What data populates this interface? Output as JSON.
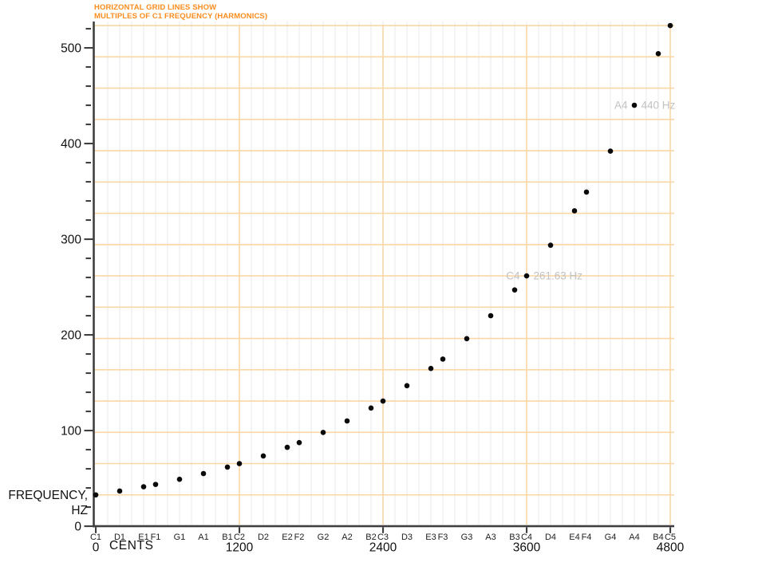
{
  "title": {
    "line1": "HORIZONTAL GRID LINES SHOW",
    "line2": "MULTIPLES OF C1 FREQUENCY (HARMONICS)"
  },
  "y_axis": {
    "label_line1": "FREQUENCY,",
    "label_line2": "HZ",
    "major_ticks": [
      0,
      100,
      200,
      300,
      400,
      500
    ],
    "minor_tick_step": 20,
    "minor_tick_max": 520
  },
  "x_axis": {
    "title": "CENTS",
    "major_ticks": [
      0,
      1200,
      2400,
      3600,
      4800
    ]
  },
  "chart_data": {
    "type": "scatter",
    "title": "HORIZONTAL GRID LINES SHOW MULTIPLES OF C1 FREQUENCY (HARMONICS)",
    "xlabel": "CENTS",
    "ylabel": "FREQUENCY, HZ",
    "xlim": [
      0,
      4800
    ],
    "ylim": [
      0,
      528
    ],
    "grid": {
      "semitone_grid_step_cents": 100,
      "octave_lines_cents": [
        1200,
        2400,
        3600,
        4800
      ]
    },
    "harmonic_base_freq": 32.7,
    "harmonic_lines": [
      32.7,
      65.41,
      98.11,
      130.81,
      163.52,
      196.22,
      228.92,
      261.63,
      294.33,
      327.03,
      359.73,
      392.44,
      425.14,
      457.84,
      490.54,
      523.25
    ],
    "points": [
      {
        "note": "C1",
        "cents": 0,
        "freq": 32.7
      },
      {
        "note": "D1",
        "cents": 200,
        "freq": 36.71
      },
      {
        "note": "E1",
        "cents": 400,
        "freq": 41.2
      },
      {
        "note": "F1",
        "cents": 500,
        "freq": 43.65
      },
      {
        "note": "G1",
        "cents": 700,
        "freq": 49.0
      },
      {
        "note": "A1",
        "cents": 900,
        "freq": 55.0
      },
      {
        "note": "B1",
        "cents": 1100,
        "freq": 61.74
      },
      {
        "note": "C2",
        "cents": 1200,
        "freq": 65.41
      },
      {
        "note": "D2",
        "cents": 1400,
        "freq": 73.42
      },
      {
        "note": "E2",
        "cents": 1600,
        "freq": 82.41
      },
      {
        "note": "F2",
        "cents": 1700,
        "freq": 87.31
      },
      {
        "note": "G2",
        "cents": 1900,
        "freq": 98.0
      },
      {
        "note": "A2",
        "cents": 2100,
        "freq": 110.0
      },
      {
        "note": "B2",
        "cents": 2300,
        "freq": 123.47
      },
      {
        "note": "C3",
        "cents": 2400,
        "freq": 130.81
      },
      {
        "note": "D3",
        "cents": 2600,
        "freq": 146.83
      },
      {
        "note": "E3",
        "cents": 2800,
        "freq": 164.81
      },
      {
        "note": "F3",
        "cents": 2900,
        "freq": 174.61
      },
      {
        "note": "G3",
        "cents": 3100,
        "freq": 196.0
      },
      {
        "note": "A3",
        "cents": 3300,
        "freq": 220.0
      },
      {
        "note": "B3",
        "cents": 3500,
        "freq": 246.94
      },
      {
        "note": "C4",
        "cents": 3600,
        "freq": 261.63
      },
      {
        "note": "D4",
        "cents": 3800,
        "freq": 293.66
      },
      {
        "note": "E4",
        "cents": 4000,
        "freq": 329.63
      },
      {
        "note": "F4",
        "cents": 4100,
        "freq": 349.23
      },
      {
        "note": "G4",
        "cents": 4300,
        "freq": 392.0
      },
      {
        "note": "A4",
        "cents": 4500,
        "freq": 440.0
      },
      {
        "note": "B4",
        "cents": 4700,
        "freq": 493.88
      },
      {
        "note": "C5",
        "cents": 4800,
        "freq": 523.25
      }
    ],
    "annotations": [
      {
        "note": "C4",
        "label": "261.63 Hz",
        "cents": 3600,
        "freq": 261.63
      },
      {
        "note": "A4",
        "label": "440 Hz",
        "cents": 4500,
        "freq": 440.0
      }
    ],
    "legend": null
  },
  "colors": {
    "title_orange": "#FB8C1E",
    "harmonic_line": "#FAD7A4",
    "semitone_grid": "#ECECEF",
    "axis": "#3F3F3F",
    "tick_label": "#111111",
    "note_label": "#222222",
    "annotation_gray": "#C2C2C2",
    "point": "#0A0A0A",
    "background": "#FFFFFF"
  }
}
